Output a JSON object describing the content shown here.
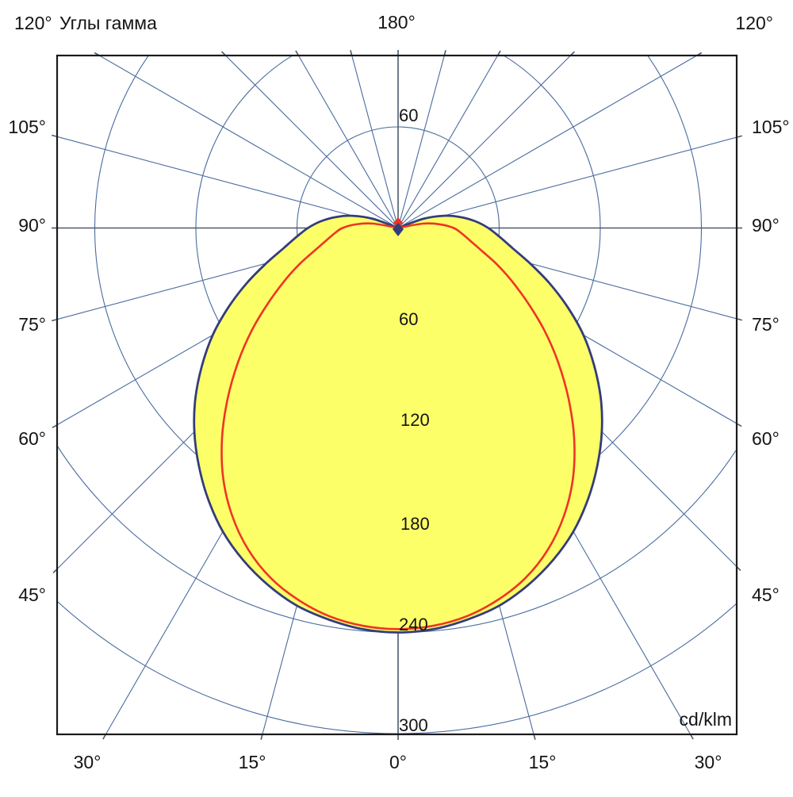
{
  "header": {
    "corner_left": "120°",
    "title": "Углы гамма",
    "top_center": "180°",
    "corner_right": "120°"
  },
  "unit_label": "cd/klm",
  "side_labels": {
    "left": [
      "105°",
      "90°",
      "75°",
      "60°",
      "45°"
    ],
    "right": [
      "105°",
      "90°",
      "75°",
      "60°",
      "45°"
    ],
    "bottom": [
      "30°",
      "15°",
      "0°",
      "15°",
      "30°"
    ]
  },
  "radial_value_labels": [
    "60",
    "60",
    "120",
    "180",
    "240",
    "300"
  ],
  "colors": {
    "grid": "#4a6b9f",
    "axis": "#4d5a6e",
    "frame": "#1a1a1a",
    "curve_main": "#333d7a",
    "curve_red": "#ee3524",
    "fill": "#fdff69",
    "text": "#141414"
  },
  "chart_data": {
    "type": "line",
    "polar": true,
    "title": "Углы гамма",
    "units": "cd/klm",
    "angle_step_deg": 15,
    "radial_ticks": [
      60,
      120,
      180,
      240,
      300
    ],
    "radial_max": 300,
    "gamma_axis_labels_deg": [
      0,
      15,
      30,
      45,
      60,
      75,
      90,
      105,
      120,
      180
    ],
    "grid": true,
    "legend": false,
    "series": [
      {
        "name": "main curve (dark blue, yellow filled)",
        "symmetric": true,
        "gamma_deg": [
          0,
          5,
          10,
          15,
          20,
          25,
          30,
          35,
          40,
          45,
          50,
          55,
          60,
          65,
          70,
          75,
          80,
          85,
          90,
          95,
          100,
          105,
          110,
          115
        ],
        "values_cd_per_klm": [
          240,
          239,
          236,
          232,
          225.5,
          217.5,
          208,
          196.5,
          184,
          171,
          157,
          142,
          127,
          111,
          95.5,
          81,
          69,
          60.5,
          53.5,
          46,
          37.5,
          28,
          16,
          0
        ],
        "max_value": 240
      },
      {
        "name": "red curve",
        "symmetric": true,
        "gamma_deg": [
          0,
          5,
          10,
          15,
          20,
          25,
          30,
          35,
          40,
          45,
          50,
          55,
          60,
          65,
          70,
          75,
          80,
          85,
          90,
          95,
          100,
          105
        ],
        "values_cd_per_klm": [
          238,
          237,
          234,
          228.5,
          221,
          210.5,
          197,
          181,
          162.5,
          143,
          124,
          106,
          89,
          74.5,
          62,
          51,
          43.5,
          38,
          33,
          25,
          15,
          0
        ],
        "max_value": 238
      }
    ]
  }
}
